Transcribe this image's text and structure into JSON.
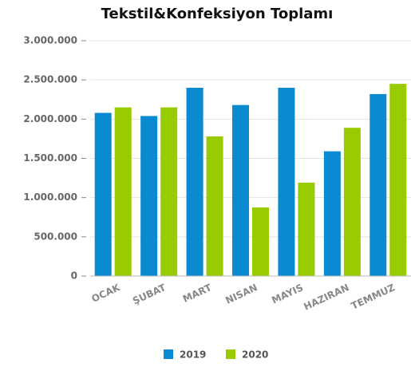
{
  "chart_data": {
    "type": "bar",
    "title": "Tekstil&Konfeksiyon Toplamı",
    "categories": [
      "OCAK",
      "ŞUBAT",
      "MART",
      "NISAN",
      "MAYIS",
      "HAZIRAN",
      "TEMMUZ"
    ],
    "series": [
      {
        "name": "2019",
        "color": "#0a8ad0",
        "values": [
          2080000,
          2040000,
          2400000,
          2180000,
          2400000,
          1590000,
          2320000
        ]
      },
      {
        "name": "2020",
        "color": "#99cc00",
        "values": [
          2150000,
          2150000,
          1780000,
          875000,
          1190000,
          1890000,
          2450000
        ]
      }
    ],
    "ylim": [
      0,
      3000000
    ],
    "yticks": [
      0,
      {
        "value": 500000,
        "label": "500.000"
      },
      {
        "value": 1000000,
        "label": "1.000.000"
      },
      {
        "value": 1500000,
        "label": "1.500.000"
      },
      {
        "value": 2000000,
        "label": "2.000.000"
      },
      {
        "value": 2500000,
        "label": "2.500.000"
      },
      {
        "value": 3000000,
        "label": "3.000.000"
      }
    ],
    "grid": true
  }
}
